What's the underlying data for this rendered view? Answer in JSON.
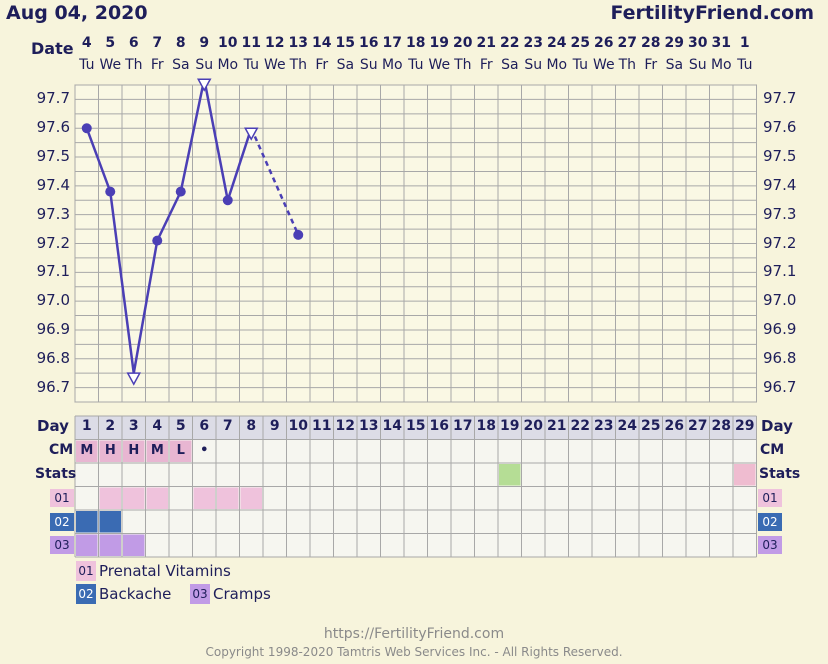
{
  "header": {
    "date": "Aug 04, 2020",
    "site": "FertilityFriend.com"
  },
  "date_row": {
    "label": "Date",
    "dates": [
      "4",
      "5",
      "6",
      "7",
      "8",
      "9",
      "10",
      "11",
      "12",
      "13",
      "14",
      "15",
      "16",
      "17",
      "18",
      "19",
      "20",
      "21",
      "22",
      "23",
      "24",
      "25",
      "26",
      "27",
      "28",
      "29",
      "30",
      "31",
      "1"
    ],
    "weekdays": [
      "Tu",
      "We",
      "Th",
      "Fr",
      "Sa",
      "Su",
      "Mo",
      "Tu",
      "We",
      "Th",
      "Fr",
      "Sa",
      "Su",
      "Mo",
      "Tu",
      "We",
      "Th",
      "Fr",
      "Sa",
      "Su",
      "Mo",
      "Tu",
      "We",
      "Th",
      "Fr",
      "Sa",
      "Su",
      "Mo",
      "Tu"
    ]
  },
  "rows": {
    "day_label": "Day",
    "days": [
      "1",
      "2",
      "3",
      "4",
      "5",
      "6",
      "7",
      "8",
      "9",
      "10",
      "11",
      "12",
      "13",
      "14",
      "15",
      "16",
      "17",
      "18",
      "19",
      "20",
      "21",
      "22",
      "23",
      "24",
      "25",
      "26",
      "27",
      "28",
      "29"
    ],
    "cm_label": "CM",
    "cm_values": [
      "M",
      "H",
      "H",
      "M",
      "L",
      "•"
    ],
    "stats_label": "Stats",
    "med_tags": [
      "01",
      "02",
      "03"
    ]
  },
  "legend": [
    {
      "tag": "01",
      "label": "Prenatal Vitamins",
      "color": "#efc2dc"
    },
    {
      "tag": "02",
      "label": "Backache",
      "color": "#3a6bb3"
    },
    {
      "tag": "03",
      "label": "Cramps",
      "color": "#c19be6"
    }
  ],
  "footer": {
    "url": "https://FertilityFriend.com",
    "copyright": "Copyright 1998-2020 Tamtris Web Services Inc. - All Rights Reserved."
  },
  "chart_data": {
    "type": "line",
    "yticks": [
      "97.7",
      "97.6",
      "97.5",
      "97.4",
      "97.3",
      "97.2",
      "97.1",
      "97.0",
      "96.9",
      "96.8",
      "96.7"
    ],
    "ylim": [
      96.65,
      97.75
    ],
    "x": [
      "1",
      "2",
      "3",
      "4",
      "5",
      "6",
      "7",
      "8",
      "10"
    ],
    "values": [
      97.6,
      97.38,
      96.75,
      97.21,
      97.38,
      97.77,
      97.35,
      97.6,
      97.23
    ],
    "open_triangles_at": [
      "3",
      "6",
      "8"
    ],
    "dashed_segment": [
      "8",
      "10"
    ],
    "line_color": "#4b3fb5",
    "grid": true
  },
  "fills": {
    "cm_color": "#e8b6d2",
    "stats_green_day": "19",
    "stats_pink_day": "29",
    "stats_green": "#b5dd95",
    "stats_pink": "#efbcd0",
    "med01_days": [
      "2",
      "3",
      "4",
      "6",
      "7",
      "8"
    ],
    "med02_days": [
      "1",
      "2"
    ],
    "med03_days": [
      "1",
      "2",
      "3"
    ]
  }
}
